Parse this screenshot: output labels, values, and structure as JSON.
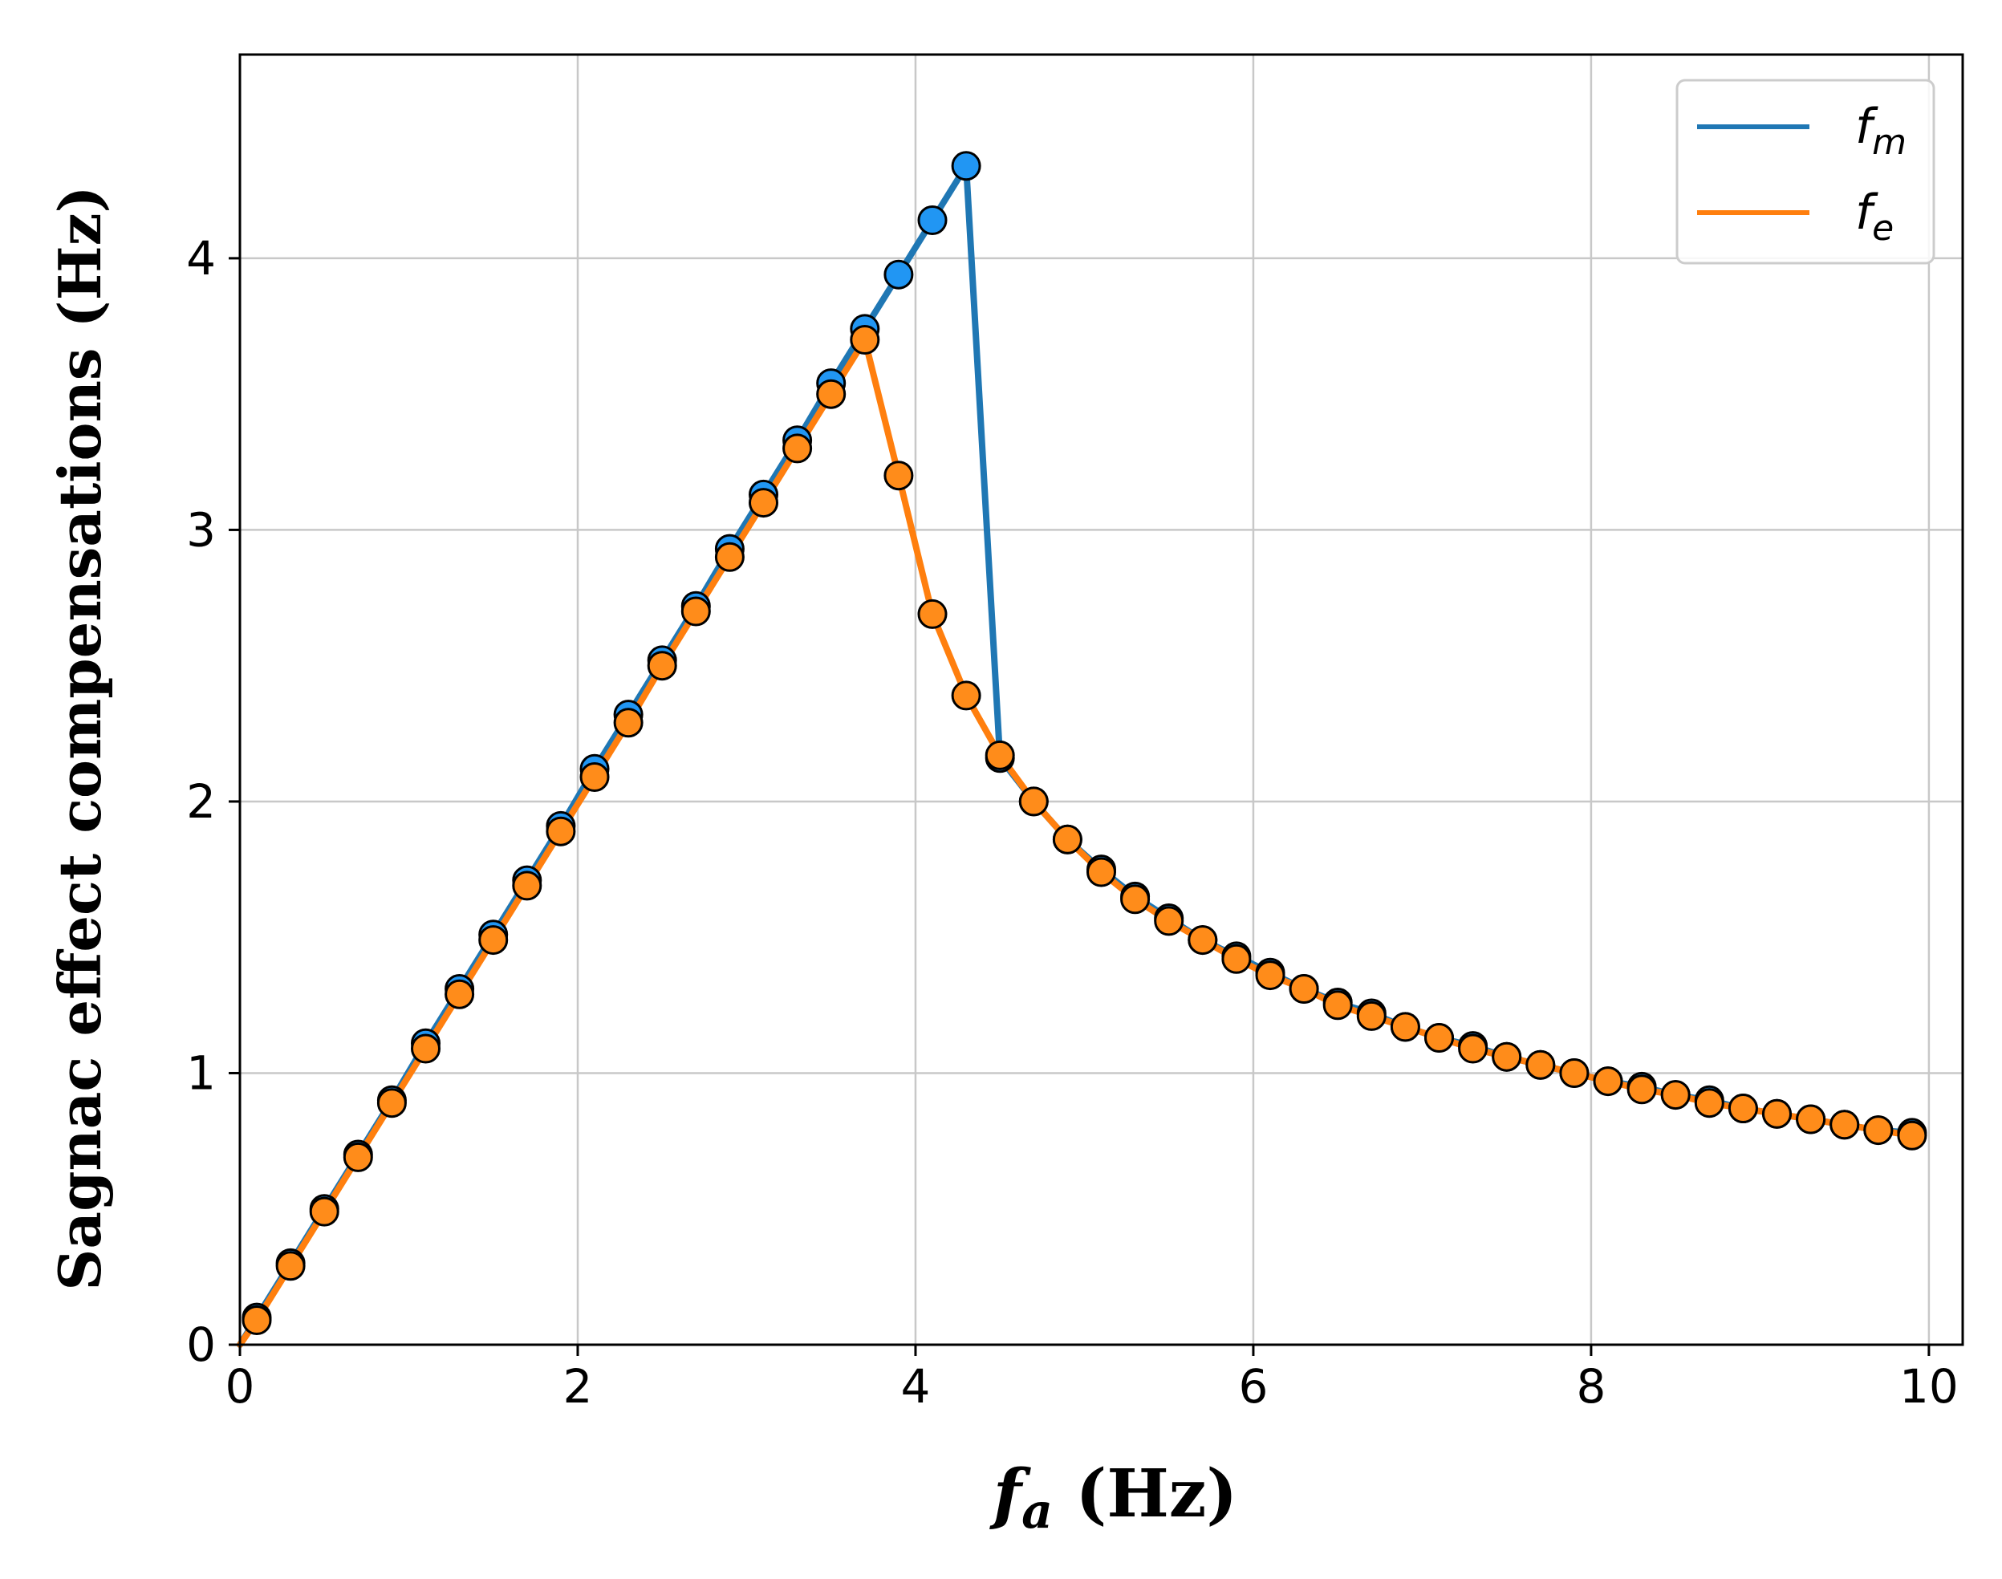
{
  "chart_data": {
    "type": "line",
    "title": "",
    "xlabel": "f",
    "xlabel_sub": "a",
    "xlabel_unit": " (Hz)",
    "ylabel": "Sagnac effect compensations (Hz)",
    "xlim": [
      0,
      10.2
    ],
    "ylim": [
      0,
      4.75
    ],
    "xticks": [
      0,
      2,
      4,
      6,
      8,
      10
    ],
    "xtick_labels": [
      "0",
      "2",
      "4",
      "6",
      "8",
      "10"
    ],
    "yticks": [
      0,
      1,
      2,
      3,
      4
    ],
    "ytick_labels": [
      "0",
      "1",
      "2",
      "3",
      "4"
    ],
    "grid": true,
    "legend_position": "top-right",
    "series": [
      {
        "name": "f_m",
        "label_main": "f",
        "label_sub": "m",
        "color": "#1f77b4",
        "marker_color": "#2196f3",
        "x": [
          0.1,
          0.3,
          0.5,
          0.7,
          0.9,
          1.1,
          1.3,
          1.5,
          1.7,
          1.9,
          2.1,
          2.3,
          2.5,
          2.7,
          2.9,
          3.1,
          3.3,
          3.5,
          3.7,
          3.9,
          4.1,
          4.3,
          4.5,
          4.7,
          4.9,
          5.1,
          5.3,
          5.5,
          5.7,
          5.9,
          6.1,
          6.3,
          6.5,
          6.7,
          6.9,
          7.1,
          7.3,
          7.5,
          7.7,
          7.9,
          8.1,
          8.3,
          8.5,
          8.7,
          8.9,
          9.1,
          9.3,
          9.5,
          9.7,
          9.9
        ],
        "y": [
          0.1,
          0.3,
          0.5,
          0.7,
          0.9,
          1.11,
          1.31,
          1.51,
          1.71,
          1.91,
          2.12,
          2.32,
          2.52,
          2.72,
          2.93,
          3.13,
          3.33,
          3.54,
          3.74,
          3.94,
          4.14,
          4.34,
          2.16,
          2.0,
          1.86,
          1.75,
          1.65,
          1.57,
          1.49,
          1.43,
          1.37,
          1.31,
          1.26,
          1.22,
          1.17,
          1.13,
          1.1,
          1.06,
          1.03,
          1.0,
          0.97,
          0.95,
          0.92,
          0.9,
          0.87,
          0.85,
          0.83,
          0.81,
          0.79,
          0.78
        ]
      },
      {
        "name": "f_e",
        "label_main": "f",
        "label_sub": "e",
        "color": "#ff7f0e",
        "marker_color": "#ff8c1a",
        "x": [
          0.1,
          0.3,
          0.5,
          0.7,
          0.9,
          1.1,
          1.3,
          1.5,
          1.7,
          1.9,
          2.1,
          2.3,
          2.5,
          2.7,
          2.9,
          3.1,
          3.3,
          3.5,
          3.7,
          3.9,
          4.1,
          4.3,
          4.5,
          4.7,
          4.9,
          5.1,
          5.3,
          5.5,
          5.7,
          5.9,
          6.1,
          6.3,
          6.5,
          6.7,
          6.9,
          7.1,
          7.3,
          7.5,
          7.7,
          7.9,
          8.1,
          8.3,
          8.5,
          8.7,
          8.9,
          9.1,
          9.3,
          9.5,
          9.7,
          9.9
        ],
        "y": [
          0.09,
          0.29,
          0.49,
          0.69,
          0.89,
          1.09,
          1.29,
          1.49,
          1.69,
          1.89,
          2.09,
          2.29,
          2.5,
          2.7,
          2.9,
          3.1,
          3.3,
          3.5,
          3.7,
          3.2,
          2.69,
          2.39,
          2.17,
          2.0,
          1.86,
          1.74,
          1.64,
          1.56,
          1.49,
          1.42,
          1.36,
          1.31,
          1.25,
          1.21,
          1.17,
          1.13,
          1.09,
          1.06,
          1.03,
          1.0,
          0.97,
          0.94,
          0.92,
          0.89,
          0.87,
          0.85,
          0.83,
          0.81,
          0.79,
          0.77
        ]
      }
    ]
  }
}
